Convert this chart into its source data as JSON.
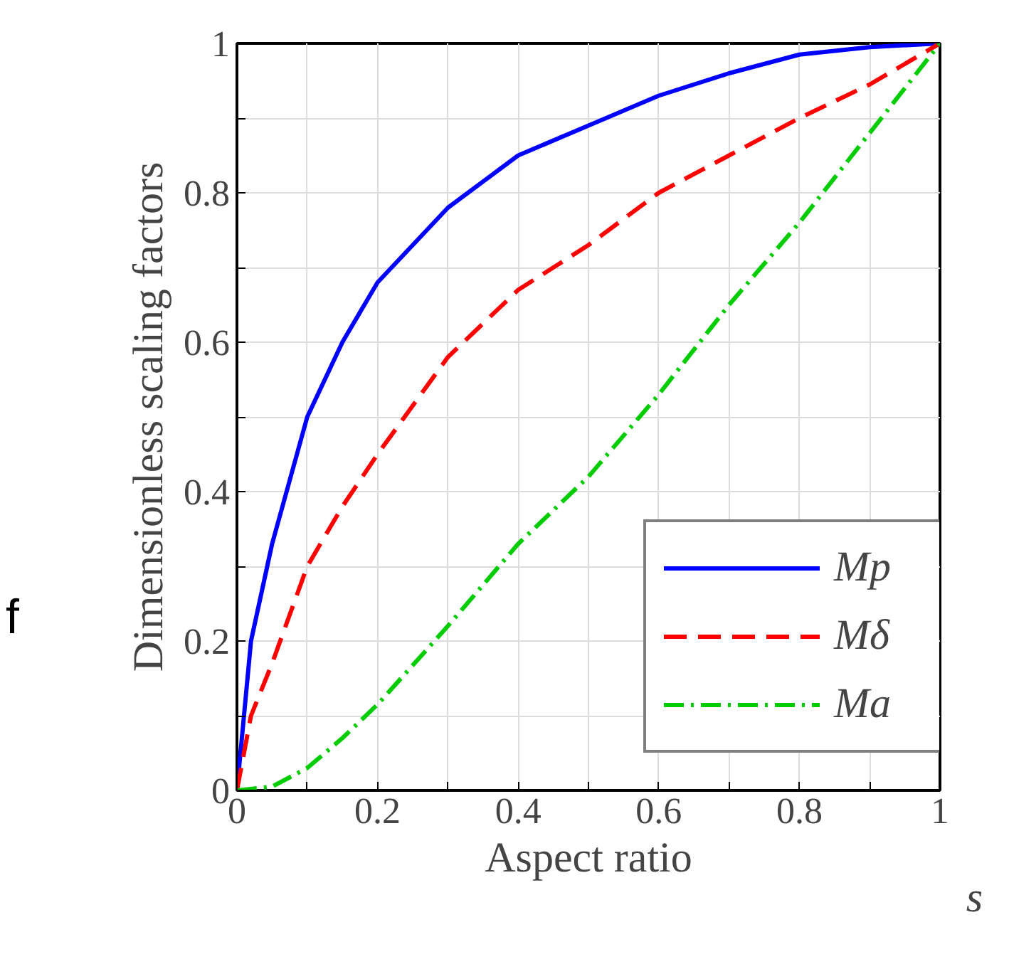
{
  "chart_data": {
    "type": "line",
    "xlabel": "Aspect ratio",
    "ylabel": "Dimensionless scaling factors",
    "annotations": [
      "s",
      "f"
    ],
    "x": [
      0,
      0.02,
      0.05,
      0.1,
      0.15,
      0.2,
      0.3,
      0.4,
      0.5,
      0.6,
      0.7,
      0.8,
      0.9,
      1.0
    ],
    "series": [
      {
        "name": "Mp",
        "color": "#0000ff",
        "line_style": "solid",
        "values": [
          0,
          0.2,
          0.33,
          0.5,
          0.6,
          0.68,
          0.78,
          0.85,
          0.89,
          0.93,
          0.96,
          0.985,
          0.995,
          1
        ]
      },
      {
        "name": "Mδ",
        "color": "#ff0000",
        "line_style": "dashed",
        "values": [
          0,
          0.1,
          0.17,
          0.3,
          0.38,
          0.45,
          0.58,
          0.67,
          0.73,
          0.8,
          0.85,
          0.9,
          0.945,
          1
        ]
      },
      {
        "name": "Ma",
        "color": "#00cc00",
        "line_style": "dashdot",
        "values": [
          0,
          0.002,
          0.005,
          0.03,
          0.07,
          0.115,
          0.22,
          0.33,
          0.42,
          0.53,
          0.65,
          0.76,
          0.88,
          1
        ]
      }
    ],
    "xlim": [
      0,
      1
    ],
    "ylim": [
      0,
      1
    ],
    "xticks": [
      0,
      {
        "value": 0.1,
        "label": null
      },
      0.2,
      {
        "value": 0.3,
        "label": null
      },
      0.4,
      {
        "value": 0.5,
        "label": null
      },
      0.6,
      {
        "value": 0.7,
        "label": null
      },
      0.8,
      {
        "value": 0.9,
        "label": null
      },
      1
    ],
    "yticks": [
      0,
      {
        "value": 0.1,
        "label": null
      },
      0.2,
      {
        "value": 0.3,
        "label": null
      },
      0.4,
      {
        "value": 0.5,
        "label": null
      },
      0.6,
      {
        "value": 0.7,
        "label": null
      },
      0.8,
      {
        "value": 0.9,
        "label": null
      },
      1
    ],
    "grid": true,
    "legend": "bottom right",
    "marker": "none"
  }
}
